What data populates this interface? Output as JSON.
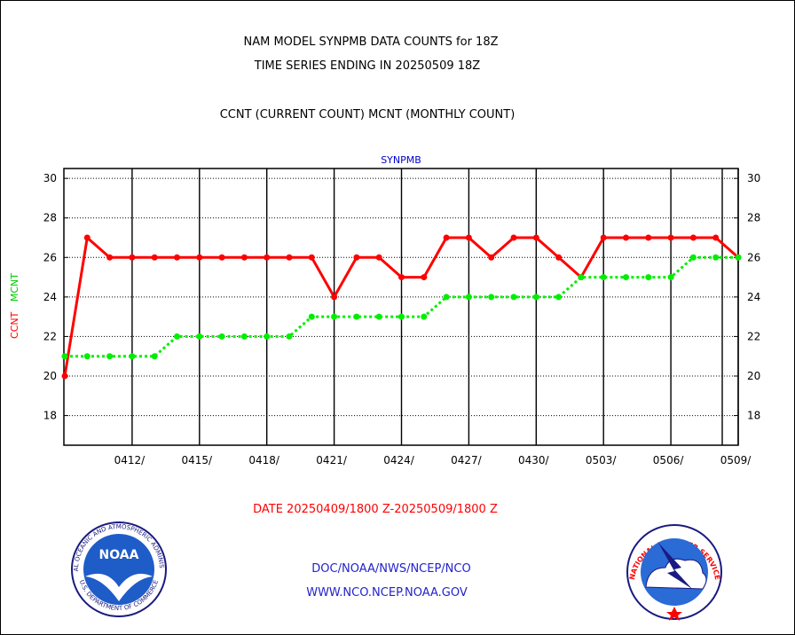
{
  "header": {
    "title_line1": "NAM MODEL SYNPMB DATA COUNTS for 18Z",
    "title_line2": "TIME SERIES ENDING IN 20250509 18Z",
    "subtitle": "CCNT (CURRENT COUNT) MCNT (MONTHLY COUNT)"
  },
  "footer": {
    "date_range": "DATE 20250409/1800 Z-20250509/1800 Z",
    "org_path": "DOC/NOAA/NWS/NCEP/NCO",
    "website": "WWW.NCO.NCEP.NOAA.GOV"
  },
  "logos": {
    "noaa_text": "NOAA",
    "noaa_ring_top": "NATIONAL OCEANIC AND ATMOSPHERIC ADMINISTRATION",
    "noaa_ring_bottom": "U.S. DEPARTMENT OF COMMERCE",
    "nws_ring": "NATIONAL WEATHER SERVICE"
  },
  "chart_data": {
    "type": "line",
    "title": "SYNPMB",
    "xlabel": "DATE 20250409/1800 Z-20250509/1800 Z",
    "ylabel_left": [
      "CCNT",
      "MCNT"
    ],
    "ylim": [
      16.5,
      30.5
    ],
    "yticks": [
      18,
      20,
      22,
      24,
      26,
      28,
      30
    ],
    "x_dates": [
      "0409",
      "0410",
      "0411",
      "0412",
      "0413",
      "0414",
      "0415",
      "0416",
      "0417",
      "0418",
      "0419",
      "0420",
      "0421",
      "0422",
      "0423",
      "0424",
      "0425",
      "0426",
      "0427",
      "0428",
      "0429",
      "0430",
      "0501",
      "0502",
      "0503",
      "0504",
      "0505",
      "0506",
      "0507",
      "0508",
      "0509"
    ],
    "xtick_labels": [
      "0412/",
      "0415/",
      "0418/",
      "0421/",
      "0424/",
      "0427/",
      "0430/",
      "0503/",
      "0506/",
      "0509/"
    ],
    "grid": true,
    "series": [
      {
        "name": "CCNT",
        "color": "#ff0000",
        "style": "solid",
        "values": [
          20,
          27,
          26,
          26,
          26,
          26,
          26,
          26,
          26,
          26,
          26,
          26,
          24,
          26,
          26,
          25,
          25,
          27,
          27,
          26,
          27,
          27,
          26,
          25,
          27,
          27,
          27,
          27,
          27,
          27,
          26
        ]
      },
      {
        "name": "MCNT",
        "color": "#00ee00",
        "style": "dotted",
        "values": [
          21,
          21,
          21,
          21,
          21,
          22,
          22,
          22,
          22,
          22,
          22,
          23,
          23,
          23,
          23,
          23,
          23,
          24,
          24,
          24,
          24,
          24,
          24,
          25,
          25,
          25,
          25,
          25,
          26,
          26,
          26
        ]
      }
    ]
  }
}
